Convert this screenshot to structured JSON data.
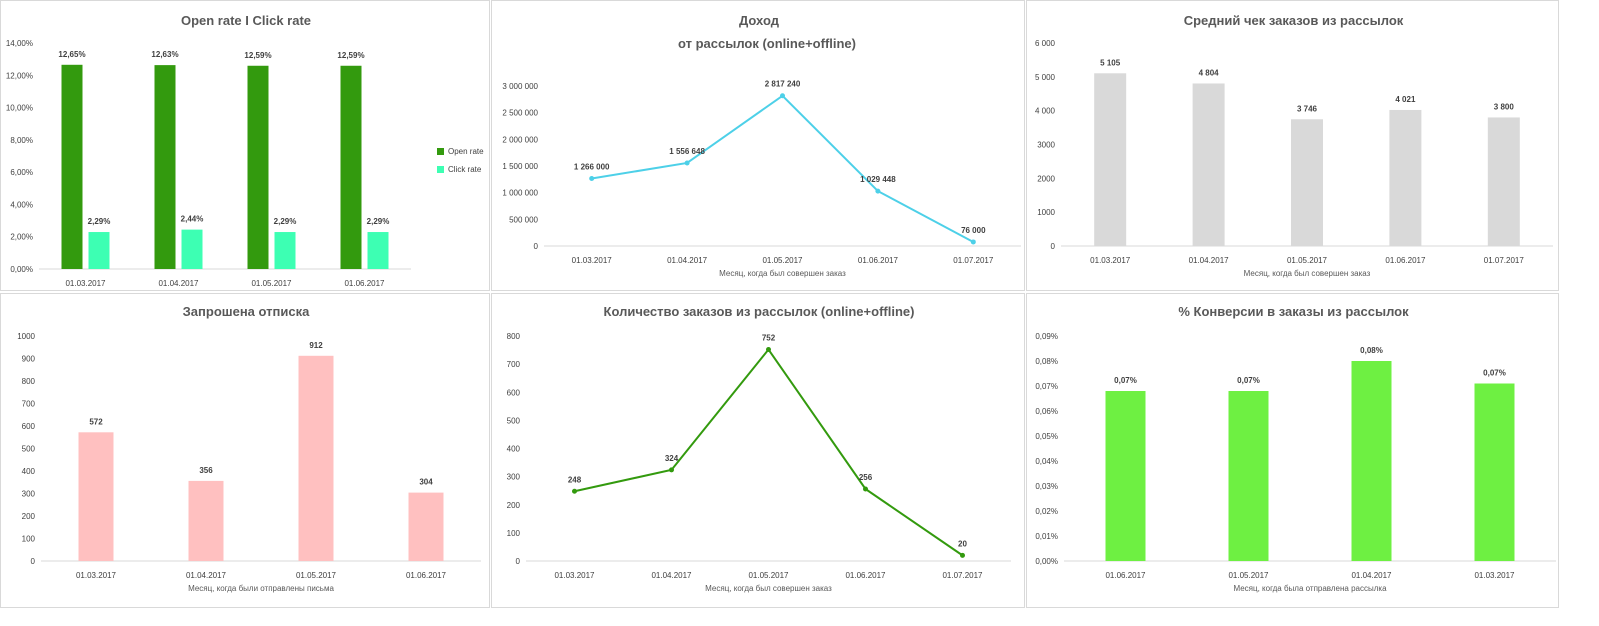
{
  "chart_data": [
    {
      "type": "bar",
      "title": "Open rate I Click rate",
      "categories": [
        "01.03.2017",
        "01.04.2017",
        "01.05.2017",
        "01.06.2017"
      ],
      "series": [
        {
          "name": "Open rate",
          "values": [
            12.65,
            12.63,
            12.59,
            12.59
          ],
          "labels": [
            "12,65%",
            "12,63%",
            "12,59%",
            "12,59%"
          ],
          "color": "#339a0e"
        },
        {
          "name": "Click rate",
          "values": [
            2.29,
            2.44,
            2.29,
            2.29
          ],
          "labels": [
            "2,29%",
            "2,44%",
            "2,29%",
            "2,29%"
          ],
          "color": "#3dffb3"
        }
      ],
      "yticks": [
        "0,00%",
        "2,00%",
        "4,00%",
        "6,00%",
        "8,00%",
        "10,00%",
        "12,00%",
        "14,00%"
      ],
      "ylim": [
        0,
        14
      ],
      "xlabel": "",
      "legend": "right"
    },
    {
      "type": "line",
      "title": "Доход",
      "subtitle": "от рассылок (online+offline)",
      "categories": [
        "01.03.2017",
        "01.04.2017",
        "01.05.2017",
        "01.06.2017",
        "01.07.2017"
      ],
      "values": [
        1266000,
        1556648,
        2817240,
        1029448,
        76000
      ],
      "labels": [
        "1 266 000",
        "1 556 648",
        "2 817 240",
        "1 029 448",
        "76 000"
      ],
      "color": "#4dd0e8",
      "yticks": [
        "0",
        "500 000",
        "1 000 000",
        "1 500 000",
        "2 000 000",
        "2 500 000",
        "3 000 000"
      ],
      "ylim": [
        0,
        3000000
      ],
      "xlabel": "Месяц, когда был совершен заказ"
    },
    {
      "type": "bar",
      "title": "Средний чек заказов из рассылок",
      "categories": [
        "01.03.2017",
        "01.04.2017",
        "01.05.2017",
        "01.06.2017",
        "01.07.2017"
      ],
      "values": [
        5105,
        4804,
        3746,
        4021,
        3800
      ],
      "labels": [
        "5 105",
        "4 804",
        "3 746",
        "4 021",
        "3 800"
      ],
      "color": "#d9d9d9",
      "yticks": [
        "0",
        "1000",
        "2000",
        "3000",
        "4 000",
        "5 000",
        "6 000"
      ],
      "ylim": [
        0,
        6000
      ],
      "xlabel": "Месяц, когда был совершен заказ"
    },
    {
      "type": "bar",
      "title": "Запрошена отписка",
      "categories": [
        "01.03.2017",
        "01.04.2017",
        "01.05.2017",
        "01.06.2017"
      ],
      "values": [
        572,
        356,
        912,
        304
      ],
      "labels": [
        "572",
        "356",
        "912",
        "304"
      ],
      "color": "#ffc0c0",
      "yticks": [
        "0",
        "100",
        "200",
        "300",
        "400",
        "500",
        "600",
        "700",
        "800",
        "900",
        "1000"
      ],
      "ylim": [
        0,
        1000
      ],
      "xlabel": "Месяц, когда были отправлены письма"
    },
    {
      "type": "line",
      "title": "Количество заказов из рассылок (online+offline)",
      "categories": [
        "01.03.2017",
        "01.04.2017",
        "01.05.2017",
        "01.06.2017",
        "01.07.2017"
      ],
      "values": [
        248,
        324,
        752,
        256,
        20
      ],
      "labels": [
        "248",
        "324",
        "752",
        "256",
        "20"
      ],
      "color": "#339a0e",
      "yticks": [
        "0",
        "100",
        "200",
        "300",
        "400",
        "500",
        "600",
        "700",
        "800"
      ],
      "ylim": [
        0,
        800
      ],
      "xlabel": "Месяц, когда был совершен заказ"
    },
    {
      "type": "bar",
      "title": "% Конверсии в заказы из рассылок",
      "categories": [
        "01.06.2017",
        "01.05.2017",
        "01.04.2017",
        "01.03.2017"
      ],
      "values": [
        0.068,
        0.068,
        0.08,
        0.071
      ],
      "labels": [
        "0,07%",
        "0,07%",
        "0,08%",
        "0,07%"
      ],
      "color": "#6ef042",
      "yticks": [
        "0,00%",
        "0,01%",
        "0,02%",
        "0,03%",
        "0,04%",
        "0,05%",
        "0,06%",
        "0,07%",
        "0,08%",
        "0,09%"
      ],
      "ylim": [
        0,
        0.09
      ],
      "xlabel": "Месяц, когда была отправлена рассылка"
    }
  ]
}
